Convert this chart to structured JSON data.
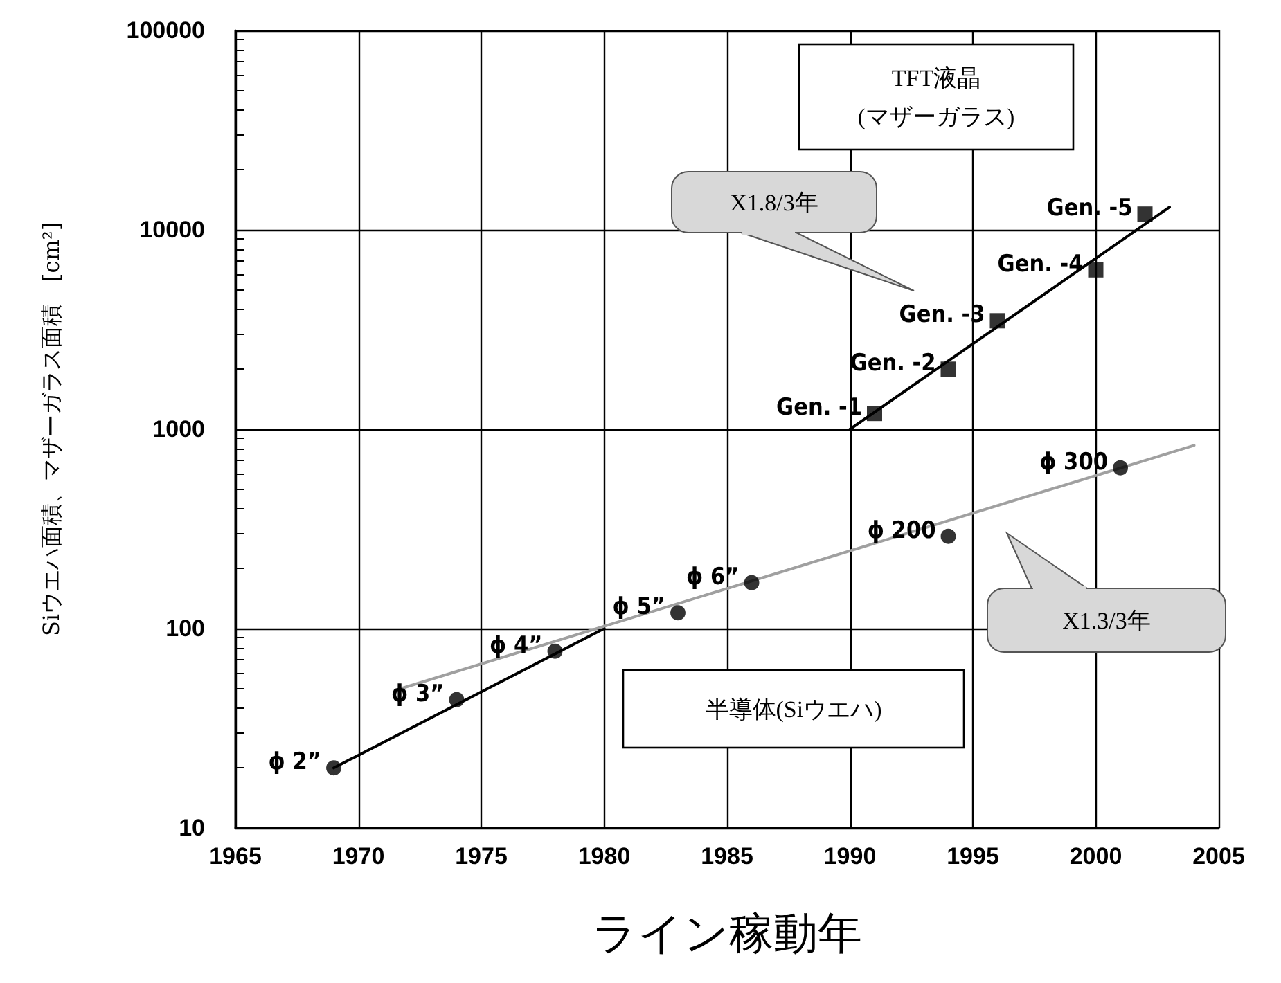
{
  "chart_data": {
    "type": "scatter",
    "xlabel": "ライン稼動年",
    "ylabel": "Siウエハ面積、マザーガラス面積　[cm²]",
    "xlim": [
      1965,
      2005
    ],
    "xticks": [
      1965,
      1970,
      1975,
      1980,
      1985,
      1990,
      1995,
      2000,
      2005
    ],
    "ylim": [
      10,
      100000
    ],
    "yticks": [
      10,
      100,
      1000,
      10000,
      100000
    ],
    "log": "y",
    "grid": true,
    "series": [
      {
        "marker": "circle",
        "color": "#000000",
        "x": [
          1969,
          1974,
          1978,
          1983,
          1986,
          1994,
          2001
        ],
        "values": [
          20,
          44,
          77,
          120,
          170,
          290,
          640
        ]
      },
      {
        "marker": "square",
        "color": "#000000",
        "x": [
          1991,
          1994,
          1996,
          2000,
          2002
        ],
        "values": [
          1200,
          2000,
          3500,
          6300,
          12000
        ]
      },
      {
        "type": "line",
        "marker": "none",
        "color": "#000000",
        "x": [
          1969,
          1980
        ],
        "values": [
          20,
          100
        ]
      },
      {
        "type": "line",
        "marker": "none",
        "color": "#a0a0a0",
        "x": [
          1971.5,
          2004
        ],
        "values": [
          49,
          830
        ]
      },
      {
        "type": "line",
        "marker": "none",
        "color": "#000000",
        "x": [
          1990,
          2003
        ],
        "values": [
          1000,
          13000
        ]
      }
    ],
    "annotations": [
      "TFT液晶\n(マザーガラス)",
      "X1.8/3年",
      "X1.3/3年",
      "半導体(Siウエハ)",
      {
        "text": "ϕ 2”",
        "x": 1969,
        "y": 20
      },
      {
        "text": "ϕ 3”",
        "x": 1974,
        "y": 44
      },
      {
        "text": "ϕ 4”",
        "x": 1978,
        "y": 77
      },
      {
        "text": "ϕ 5”",
        "x": 1983,
        "y": 120
      },
      {
        "text": "ϕ 6”",
        "x": 1986,
        "y": 170
      },
      {
        "text": "ϕ 200",
        "x": 1994,
        "y": 290
      },
      {
        "text": "ϕ 300",
        "x": 2001,
        "y": 640
      },
      {
        "text": "Gen. -1",
        "x": 1991,
        "y": 1200
      },
      {
        "text": "Gen. -2",
        "x": 1994,
        "y": 2000
      },
      {
        "text": "Gen. -3",
        "x": 1996,
        "y": 3500
      },
      {
        "text": "Gen. -4",
        "x": 2000,
        "y": 6300
      },
      {
        "text": "Gen. -5",
        "x": 2002,
        "y": 12000
      }
    ]
  }
}
